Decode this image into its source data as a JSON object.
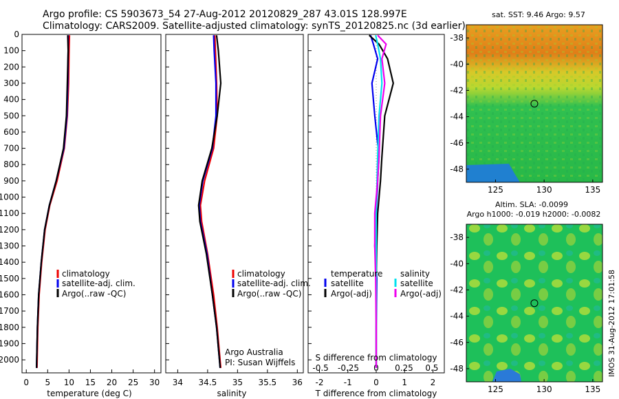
{
  "title": {
    "line1": "Argo profile: CS 5903673_54 27-Aug-2012 20120829_287 43.01S 128.997E",
    "line2": "Climatology: CARS2009. Satellite-adjusted climatology: synTS_20120825.nc (3d earlier)"
  },
  "side_stamp": "IMOS 31-Aug-2012 17:01:58",
  "colors": {
    "climatology": "#ee0000",
    "satellite": "#0000ee",
    "argo": "#000000",
    "satellite_s": "#00e0ee",
    "argo_s": "#ee00ee"
  },
  "chart_data": [
    {
      "type": "line",
      "panel": "temperature",
      "xlabel": "temperature (deg C)",
      "ylabel": "",
      "xlim": [
        -1,
        31.5
      ],
      "ylim": [
        2080,
        0
      ],
      "xticks": [
        0,
        5,
        10,
        15,
        20,
        25,
        30
      ],
      "yticks": [
        0,
        100,
        200,
        300,
        400,
        500,
        600,
        700,
        800,
        900,
        1000,
        1100,
        1200,
        1300,
        1400,
        1500,
        1600,
        1700,
        1800,
        1900,
        2000
      ],
      "legend": [
        "climatology",
        "satellite-adj. clim.",
        "Argo(..raw -QC)"
      ],
      "series": [
        {
          "name": "climatology",
          "color": "#ee0000",
          "x": [
            10.1,
            10.0,
            9.9,
            9.6,
            8.9,
            7.2,
            5.5,
            4.4,
            3.6,
            3.0,
            2.7,
            2.5
          ],
          "y": [
            5,
            100,
            300,
            500,
            700,
            900,
            1050,
            1200,
            1400,
            1600,
            1800,
            2050
          ]
        },
        {
          "name": "satellite-adj. clim.",
          "color": "#0000ee",
          "x": [
            9.8,
            9.8,
            9.7,
            9.5,
            8.8,
            7.0,
            5.4,
            4.3,
            3.5,
            2.9,
            2.6,
            2.4
          ],
          "y": [
            5,
            100,
            300,
            500,
            700,
            900,
            1050,
            1200,
            1400,
            1600,
            1800,
            2050
          ]
        },
        {
          "name": "Argo(..raw -QC)",
          "color": "#000000",
          "x": [
            9.7,
            9.8,
            9.6,
            9.4,
            8.7,
            7.0,
            5.4,
            4.3,
            3.5,
            2.9,
            2.6,
            2.4
          ],
          "y": [
            5,
            100,
            300,
            500,
            700,
            900,
            1050,
            1200,
            1400,
            1600,
            1800,
            2050
          ]
        }
      ]
    },
    {
      "type": "line",
      "panel": "salinity",
      "xlabel": "salinity",
      "ylabel": "",
      "xlim": [
        33.8,
        36.1
      ],
      "ylim": [
        2080,
        0
      ],
      "xticks": [
        34,
        34.5,
        35,
        35.5,
        36
      ],
      "xtick_labels": [
        "34",
        "34.5",
        "35",
        "35.5",
        "36"
      ],
      "legend": [
        "climatology",
        "satellite-adj. clim.",
        "Argo(..raw -QC)"
      ],
      "annotations": [
        "Argo Australia",
        "PI: Susan Wijffels"
      ],
      "series": [
        {
          "name": "climatology",
          "color": "#ee0000",
          "x": [
            34.62,
            34.63,
            34.65,
            34.66,
            34.6,
            34.45,
            34.38,
            34.4,
            34.5,
            34.6,
            34.66,
            34.72
          ],
          "y": [
            5,
            100,
            300,
            500,
            700,
            900,
            1050,
            1150,
            1350,
            1600,
            1800,
            2050
          ]
        },
        {
          "name": "satellite-adj. clim.",
          "color": "#0000ee",
          "x": [
            34.6,
            34.61,
            34.64,
            34.64,
            34.58,
            34.42,
            34.36,
            34.38,
            34.49,
            34.58,
            34.65,
            34.71
          ],
          "y": [
            5,
            100,
            300,
            500,
            700,
            900,
            1050,
            1150,
            1350,
            1600,
            1800,
            2050
          ]
        },
        {
          "name": "Argo(..raw -QC)",
          "color": "#000000",
          "x": [
            34.65,
            34.68,
            34.72,
            34.66,
            34.57,
            34.41,
            34.35,
            34.37,
            34.48,
            34.58,
            34.65,
            34.71
          ],
          "y": [
            5,
            100,
            300,
            500,
            700,
            900,
            1050,
            1150,
            1350,
            1600,
            1800,
            2050
          ]
        }
      ]
    },
    {
      "type": "line",
      "panel": "difference",
      "xlabel": "T difference from climatology",
      "top_label": "S difference from climatology",
      "xlim": [
        -2.4,
        2.4
      ],
      "ylim": [
        2080,
        0
      ],
      "xticks": [
        -2,
        -1,
        0,
        1,
        2
      ],
      "top_ticks": [
        -0.5,
        -0.25,
        0,
        0.25,
        0.5
      ],
      "top_tick_labels": [
        "-0.5",
        "-0.25",
        "0",
        "0.25",
        "0.5"
      ],
      "legend_headers": [
        "temperature",
        "salinity"
      ],
      "legend": [
        "satellite",
        "Argo(-adj)",
        "satellite",
        "Argo(-adj)"
      ],
      "series": [
        {
          "name": "satellite",
          "group": "temperature",
          "color": "#0000ee",
          "x": [
            -0.2,
            -0.1,
            0.05,
            -0.15,
            -0.05,
            0.1,
            0.05,
            0.0,
            -0.05,
            0.02,
            0.0,
            0.0
          ],
          "y": [
            5,
            60,
            150,
            300,
            500,
            750,
            900,
            1100,
            1300,
            1500,
            1800,
            2050
          ]
        },
        {
          "name": "Argo(-adj)",
          "group": "temperature",
          "color": "#000000",
          "x": [
            -0.25,
            0.1,
            0.4,
            0.6,
            0.3,
            0.2,
            0.15,
            0.05,
            0.02,
            0.0,
            0.0,
            0.0
          ],
          "y": [
            5,
            60,
            150,
            300,
            500,
            750,
            900,
            1100,
            1300,
            1500,
            1800,
            2050
          ]
        },
        {
          "name": "satellite",
          "group": "salinity",
          "color": "#00e0ee",
          "x": [
            -0.02,
            0.05,
            0.15,
            0.2,
            0.1,
            0.05,
            0.03,
            0.0,
            0.0,
            0.0,
            0.0,
            0.0
          ],
          "y": [
            5,
            60,
            150,
            300,
            500,
            750,
            900,
            1100,
            1300,
            1500,
            1800,
            2050
          ]
        },
        {
          "name": "Argo(-adj)",
          "group": "salinity",
          "color": "#ee00ee",
          "x": [
            0.05,
            0.35,
            0.2,
            0.3,
            0.15,
            0.1,
            0.05,
            -0.05,
            -0.05,
            -0.02,
            0.0,
            0.0
          ],
          "y": [
            5,
            60,
            150,
            300,
            500,
            750,
            900,
            1100,
            1300,
            1500,
            1800,
            2050
          ]
        }
      ]
    },
    {
      "type": "heatmap",
      "panel": "sst_map",
      "title": "sat. SST: 9.46 Argo: 9.57",
      "xlim": [
        122,
        136
      ],
      "ylim": [
        -49,
        -37
      ],
      "xticks": [
        125,
        130,
        135
      ],
      "yticks": [
        -38,
        -40,
        -42,
        -44,
        -46,
        -48
      ],
      "marker": {
        "lon": 128.997,
        "lat": -43.01
      }
    },
    {
      "type": "heatmap",
      "panel": "sla_map",
      "title": "Altim. SLA: -0.0099",
      "subtitle": "Argo h1000: -0.019 h2000: -0.0082",
      "xlim": [
        122,
        136
      ],
      "ylim": [
        -49,
        -37
      ],
      "xticks": [
        125,
        130,
        135
      ],
      "yticks": [
        -38,
        -40,
        -42,
        -44,
        -46,
        -48
      ],
      "marker": {
        "lon": 128.997,
        "lat": -43.01
      }
    }
  ]
}
